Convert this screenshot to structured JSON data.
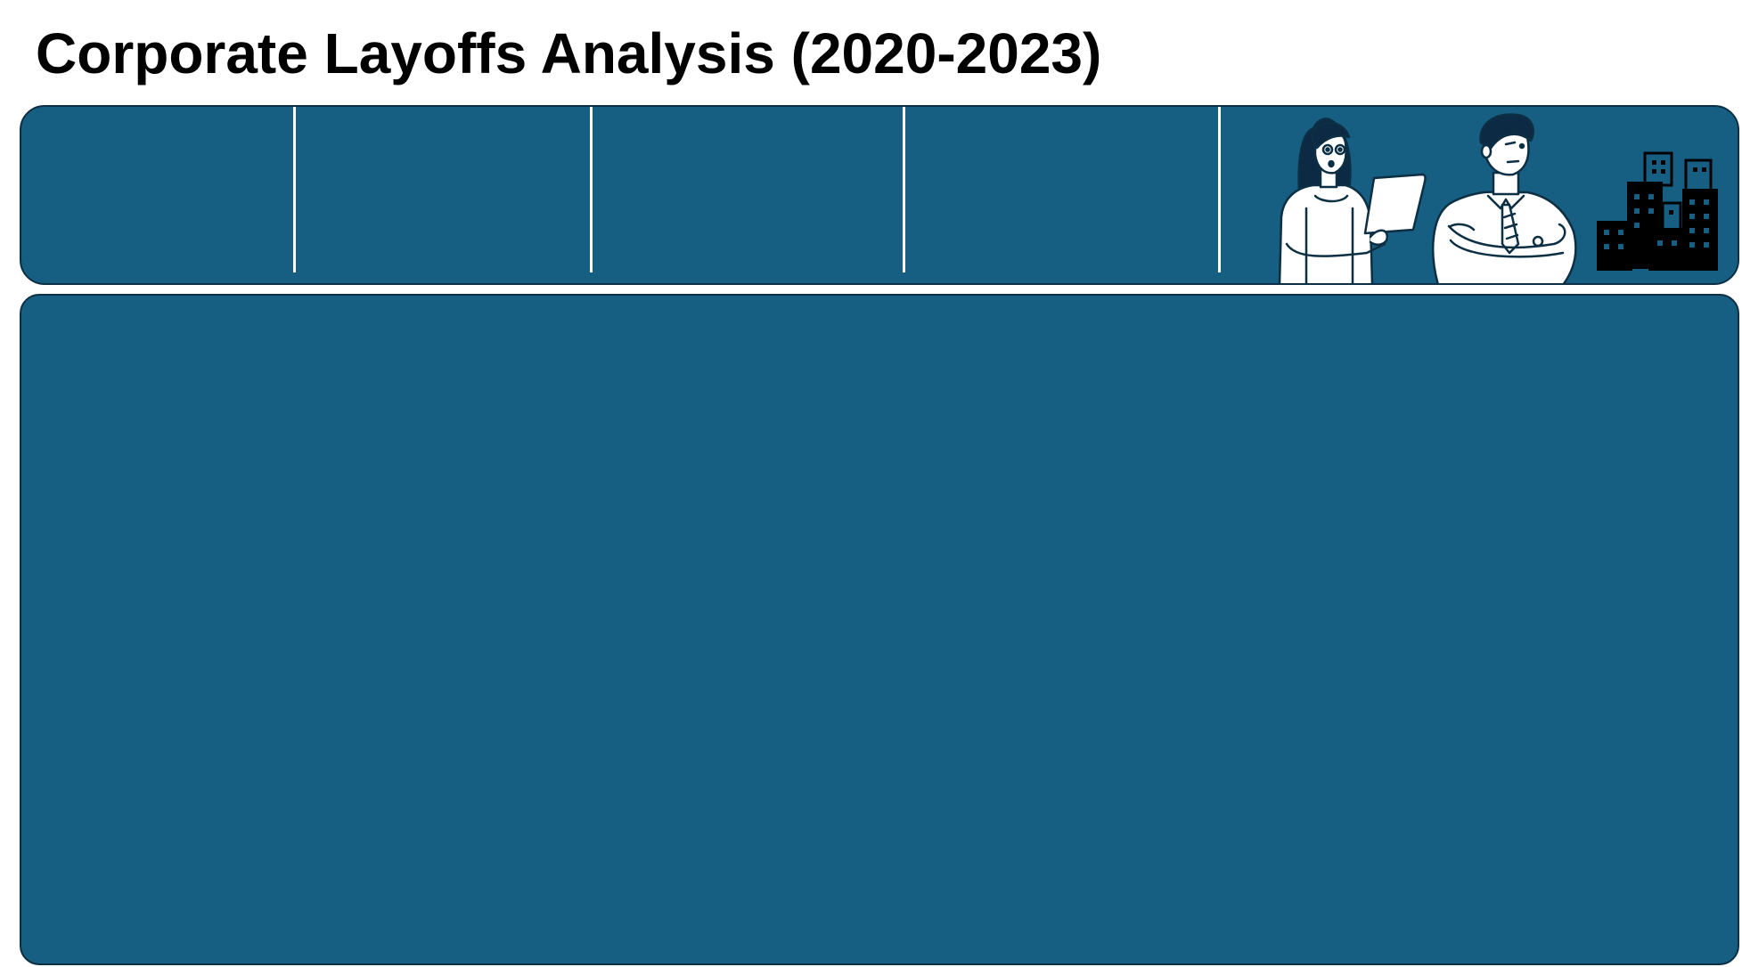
{
  "header": {
    "title": "Corporate Layoffs Analysis (2020-2023)"
  },
  "colors": {
    "panel_background": "#175f82",
    "panel_border": "#0c2f44",
    "divider": "#ffffff",
    "illustration_outline": "#0c2f44",
    "illustration_fill": "#ffffff",
    "hair": "#0d2a45",
    "buildings": "#000000"
  },
  "kpi_panel": {
    "cards": [
      {
        "icon": "none"
      },
      {
        "icon": "none"
      },
      {
        "icon": "none"
      },
      {
        "icon": "none"
      },
      {
        "icon": "none"
      }
    ],
    "illustration": {
      "icons": [
        "woman-with-tablet-icon",
        "man-arms-crossed-icon",
        "office-buildings-icon"
      ]
    }
  },
  "main_panel": {}
}
